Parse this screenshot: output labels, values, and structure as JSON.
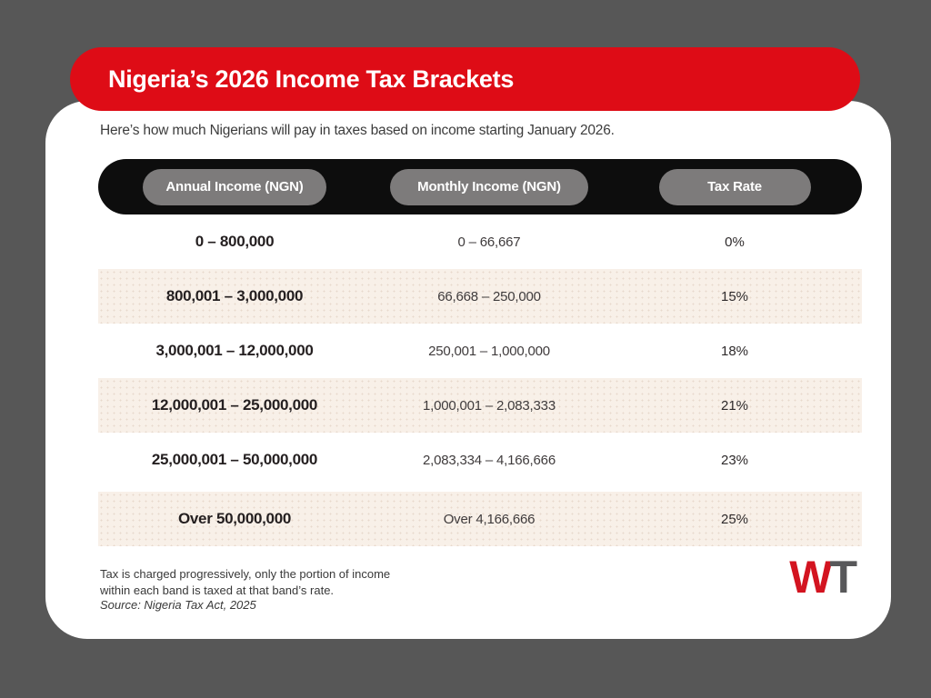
{
  "title": "Nigeria’s 2026 Income Tax Brackets",
  "subtitle": "Here’s how much Nigerians will pay in taxes based on income starting January 2026.",
  "table": {
    "columns": [
      "Annual Income (NGN)",
      "Monthly Income (NGN)",
      "Tax Rate"
    ],
    "rows": [
      {
        "annual": "0 – 800,000",
        "monthly": "0 – 66,667",
        "rate": "0%"
      },
      {
        "annual": "800,001 – 3,000,000",
        "monthly": "66,668 – 250,000",
        "rate": "15%"
      },
      {
        "annual": "3,000,001 – 12,000,000",
        "monthly": "250,001 – 1,000,000",
        "rate": "18%"
      },
      {
        "annual": "12,000,001 – 25,000,000",
        "monthly": "1,000,001 – 2,083,333",
        "rate": "21%"
      },
      {
        "annual": "25,000,001 – 50,000,000",
        "monthly": "2,083,334 – 4,166,666",
        "rate": "23%"
      },
      {
        "annual": "Over 50,000,000",
        "monthly": "Over 4,166,666",
        "rate": "25%"
      }
    ]
  },
  "footnote": "Tax is charged progressively, only the portion of income within each band is taxed at that band’s rate.",
  "source": "Source: Nigeria Tax Act, 2025",
  "logo": {
    "w": "W",
    "t": "T"
  },
  "colors": {
    "background": "#575757",
    "banner_red": "#de0c16",
    "card_white": "#ffffff",
    "header_black": "#0d0d0d",
    "pill_gray": "#7d7b7b",
    "row_beige": "#f8f0e8",
    "logo_w_red": "#d31420",
    "logo_t_gray": "#58585a"
  },
  "chart_data": {
    "type": "table",
    "title": "Nigeria’s 2026 Income Tax Brackets",
    "columns": [
      "Annual Income (NGN)",
      "Monthly Income (NGN)",
      "Tax Rate"
    ],
    "rows": [
      [
        "0 – 800,000",
        "0 – 66,667",
        "0%"
      ],
      [
        "800,001 – 3,000,000",
        "66,668 – 250,000",
        "15%"
      ],
      [
        "3,000,001 – 12,000,000",
        "250,001 – 1,000,000",
        "18%"
      ],
      [
        "12,000,001 – 25,000,000",
        "1,000,001 – 2,083,333",
        "21%"
      ],
      [
        "25,000,001 – 50,000,000",
        "2,083,334 – 4,166,666",
        "23%"
      ],
      [
        "Over 50,000,000",
        "Over 4,166,666",
        "25%"
      ]
    ],
    "tax_rates_percent": [
      0,
      15,
      18,
      21,
      23,
      25
    ],
    "annual_band_bounds_ngn": [
      [
        0,
        800000
      ],
      [
        800001,
        3000000
      ],
      [
        3000001,
        12000000
      ],
      [
        12000001,
        25000000
      ],
      [
        25000001,
        50000000
      ],
      [
        50000000,
        null
      ]
    ],
    "note": "Tax is charged progressively, only the portion of income within each band is taxed at that band’s rate.",
    "source": "Source: Nigeria Tax Act, 2025"
  }
}
